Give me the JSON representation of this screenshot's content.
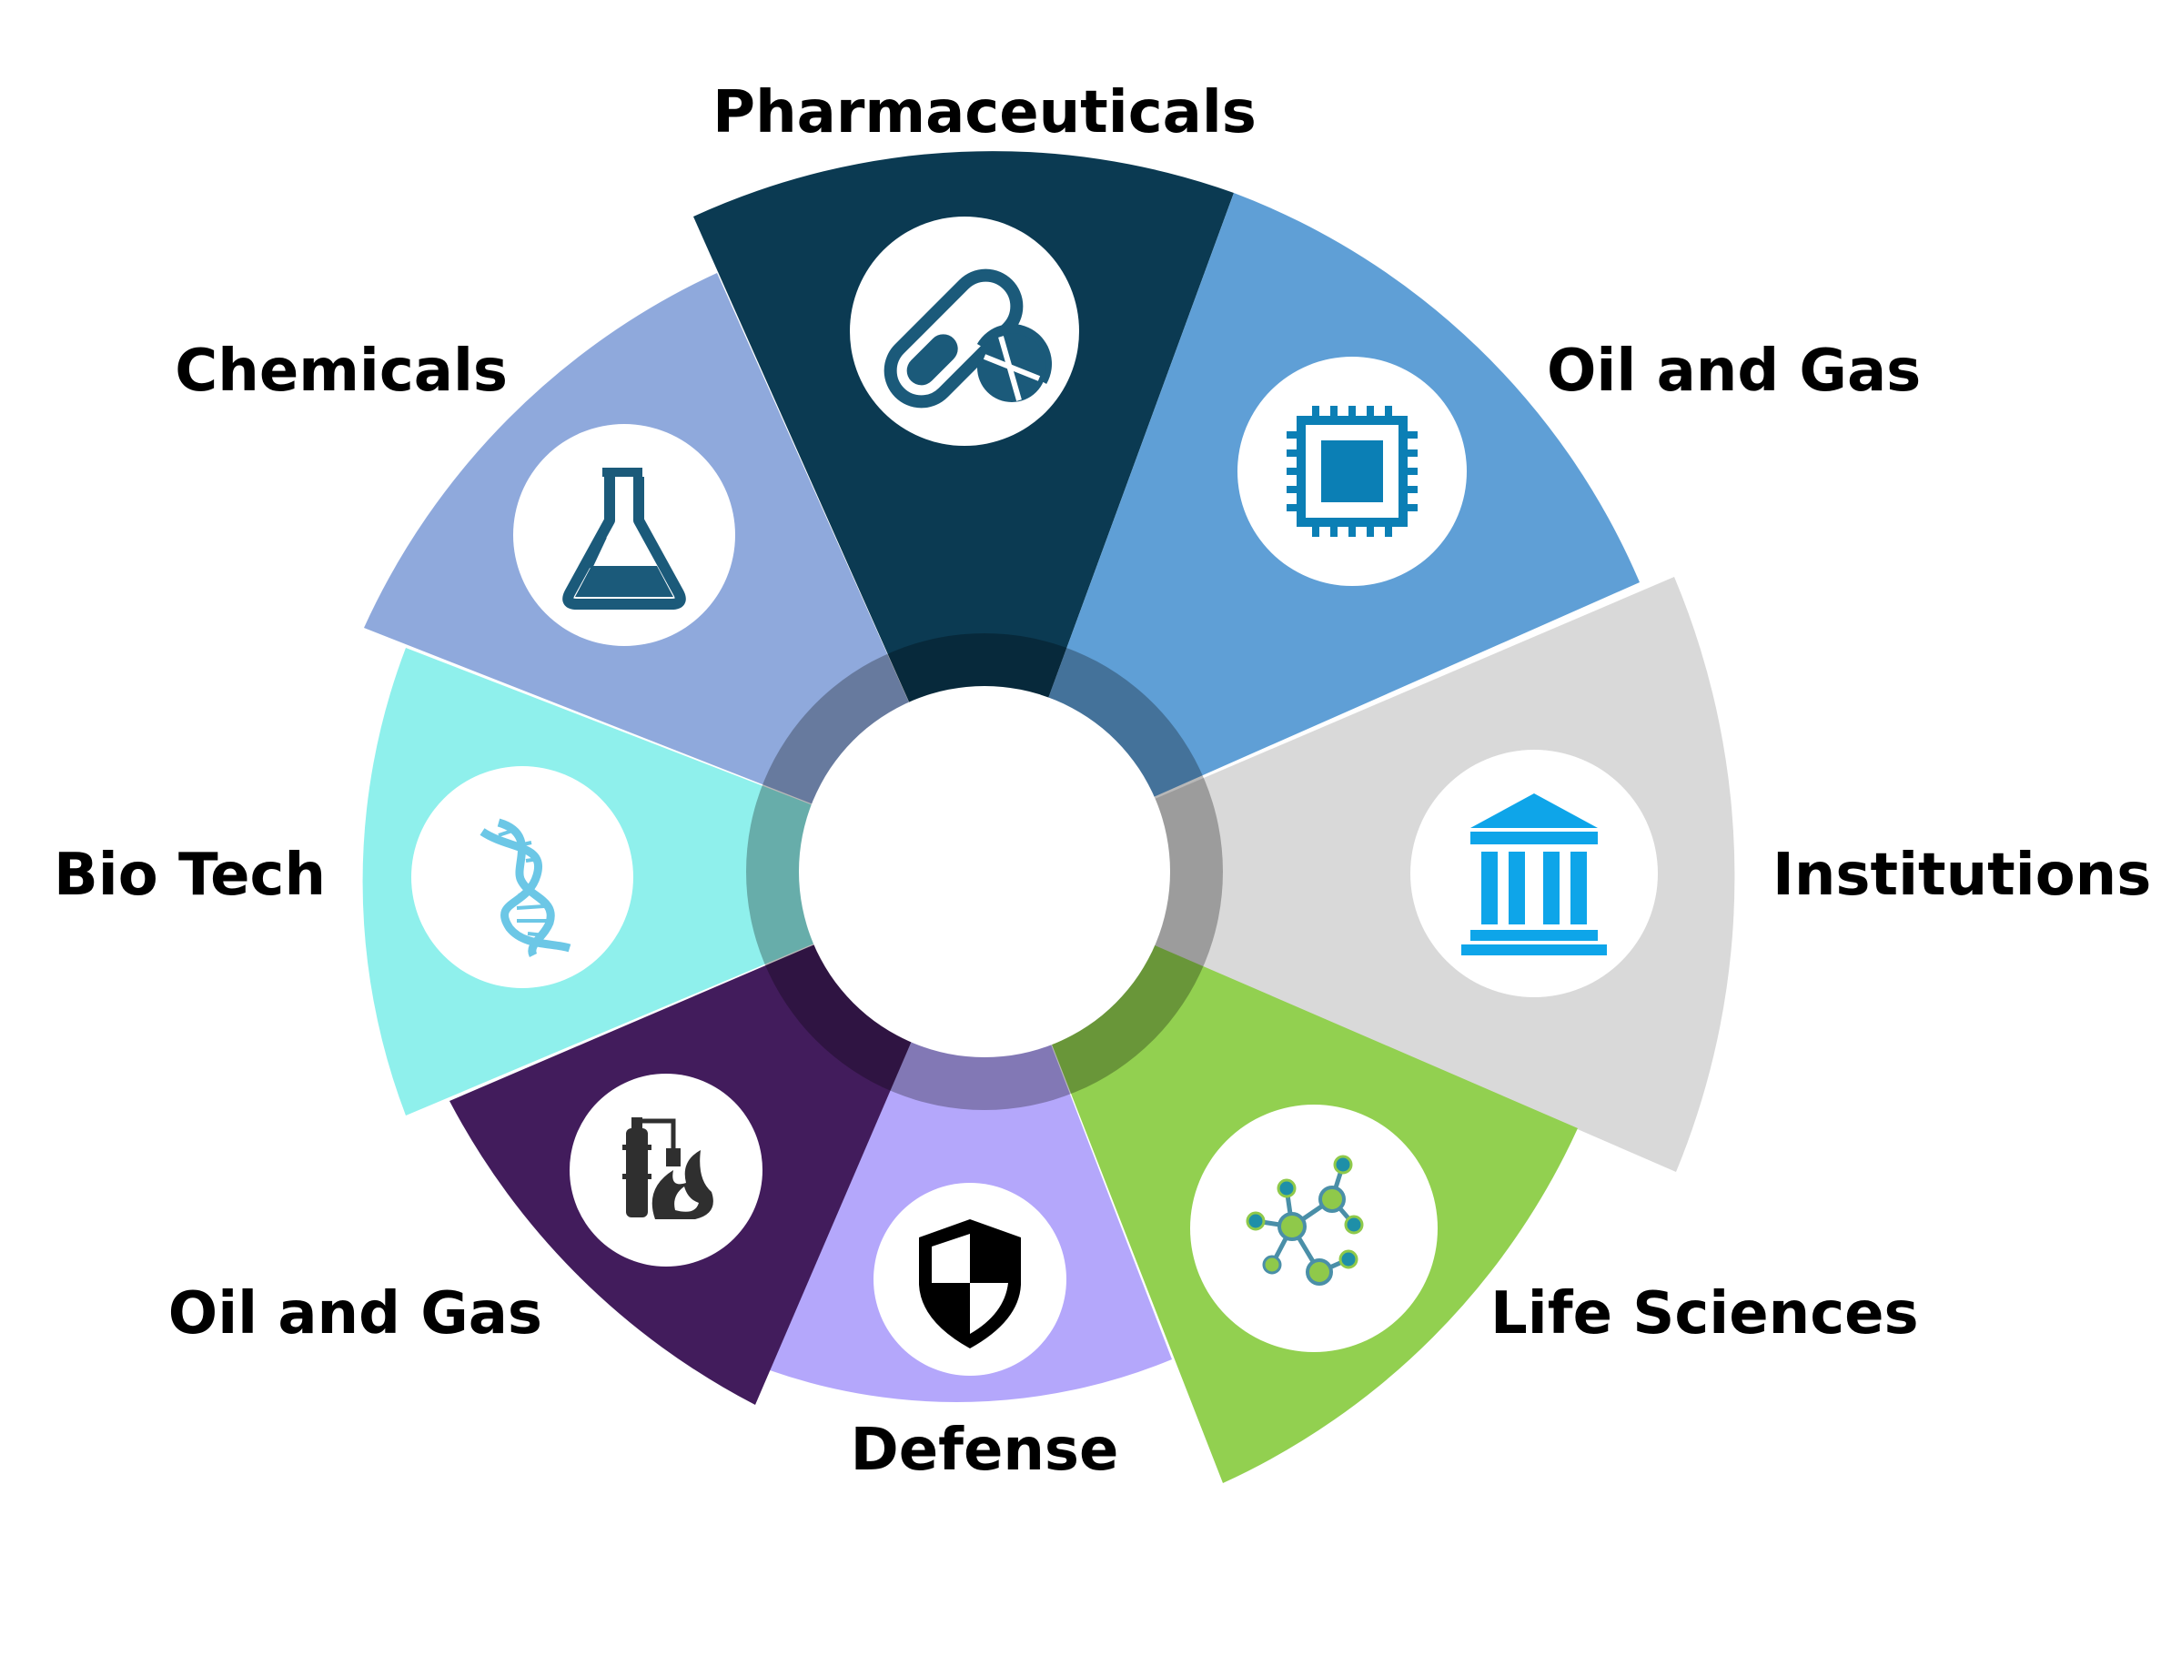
{
  "segments": [
    {
      "label": "Pharmaceuticals",
      "color": "#0b3a52",
      "icon": "pill-icon"
    },
    {
      "label": "Oil and Gas",
      "color": "#5f9fd6",
      "icon": "microchip-icon"
    },
    {
      "label": "Institutions",
      "color": "#d9d9d9",
      "icon": "bank-building-icon"
    },
    {
      "label": "Life Sciences",
      "color": "#92d050",
      "icon": "molecule-icon"
    },
    {
      "label": "Defense",
      "color": "#b4a7fb",
      "icon": "shield-icon"
    },
    {
      "label": "Oil and Gas",
      "color": "#421c5c",
      "icon": "refinery-flame-icon"
    },
    {
      "label": "Bio Tech",
      "color": "#8ff0ec",
      "icon": "dna-icon"
    },
    {
      "label": "Chemicals",
      "color": "#8fa9dc",
      "icon": "flask-icon"
    }
  ]
}
